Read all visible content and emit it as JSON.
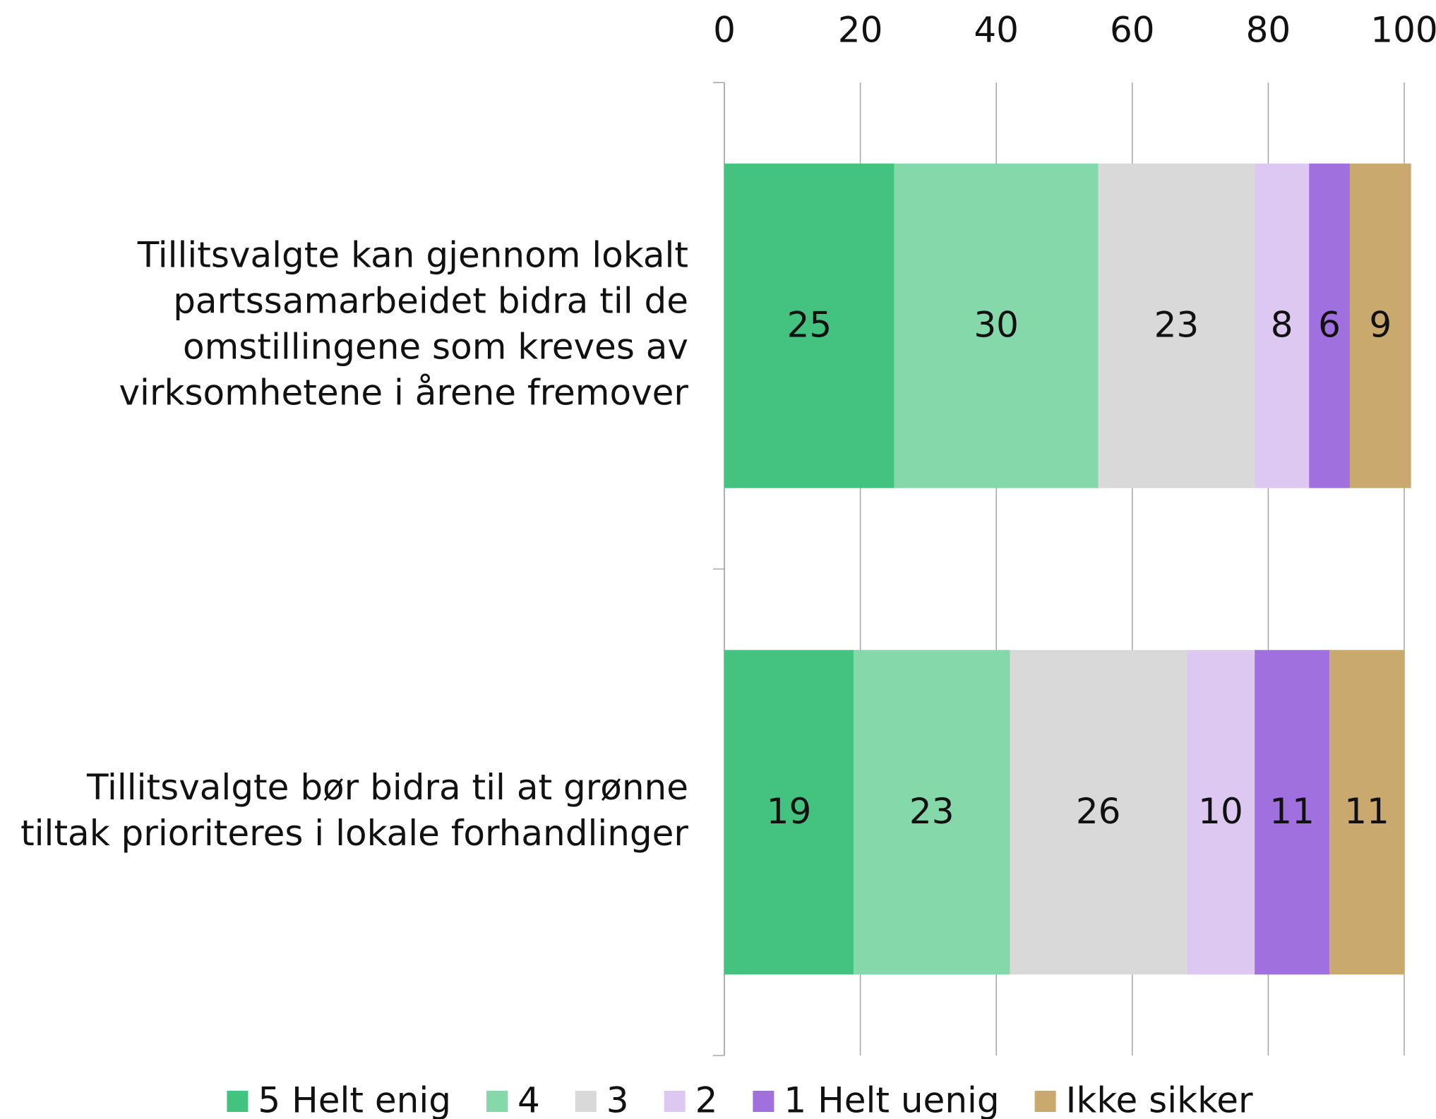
{
  "chart_data": {
    "type": "stacked-barh",
    "categories": [
      "Tillitsvalgte kan gjennom lokalt\npartssamarbeidet bidra til de\nomstillingene som kreves av\nvirksomhetene i årene fremover",
      "Tillitsvalgte bør bidra til at grønne\ntiltak prioriteres i lokale forhandlinger"
    ],
    "series": [
      {
        "name": "5 Helt enig",
        "color": "#44c27f",
        "values": [
          25,
          19
        ]
      },
      {
        "name": "4",
        "color": "#84d8aa",
        "values": [
          30,
          23
        ]
      },
      {
        "name": "3",
        "color": "#d9d9d9",
        "values": [
          23,
          26
        ]
      },
      {
        "name": "2",
        "color": "#dcc8f0",
        "values": [
          8,
          10
        ]
      },
      {
        "name": "1 Helt uenig",
        "color": "#9f70de",
        "values": [
          6,
          11
        ]
      },
      {
        "name": "Ikke sikker",
        "color": "#c9a96e",
        "values": [
          9,
          11
        ]
      }
    ],
    "xlim": [
      0,
      100
    ],
    "xticks": [
      0,
      20,
      40,
      60,
      80,
      100
    ],
    "grid": true,
    "legend": "bottom"
  }
}
